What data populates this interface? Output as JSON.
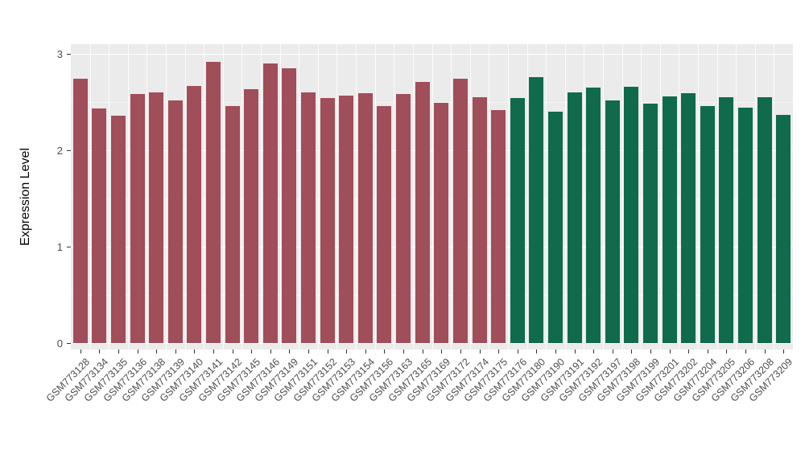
{
  "y_axis": {
    "label": "Expression Level"
  },
  "chart_data": {
    "type": "bar",
    "title": "",
    "xlabel": "",
    "ylabel": "Expression Level",
    "ylim": [
      0,
      3
    ],
    "yticks": [
      0,
      1,
      2,
      3
    ],
    "yticks_minor": [
      0.5,
      1.5,
      2.5
    ],
    "grid": true,
    "legend": "none",
    "panel_background": "#EBEBEB",
    "categories": [
      "GSM773128",
      "GSM773134",
      "GSM773135",
      "GSM773136",
      "GSM773138",
      "GSM773139",
      "GSM773140",
      "GSM773141",
      "GSM773142",
      "GSM773145",
      "GSM773146",
      "GSM773149",
      "GSM773151",
      "GSM773152",
      "GSM773153",
      "GSM773154",
      "GSM773156",
      "GSM773163",
      "GSM773165",
      "GSM773169",
      "GSM773172",
      "GSM773174",
      "GSM773175",
      "GSM773176",
      "GSM773180",
      "GSM773190",
      "GSM773191",
      "GSM773192",
      "GSM773197",
      "GSM773198",
      "GSM773199",
      "GSM773201",
      "GSM773202",
      "GSM773204",
      "GSM773205",
      "GSM773206",
      "GSM773208",
      "GSM773209"
    ],
    "values": [
      2.74,
      2.43,
      2.36,
      2.58,
      2.6,
      2.52,
      2.67,
      2.92,
      2.46,
      2.63,
      2.9,
      2.85,
      2.6,
      2.54,
      2.57,
      2.59,
      2.46,
      2.58,
      2.71,
      2.49,
      2.74,
      2.55,
      2.42,
      2.54,
      2.76,
      2.4,
      2.6,
      2.65,
      2.52,
      2.66,
      2.48,
      2.56,
      2.59,
      2.46,
      2.55,
      2.44,
      2.55,
      2.37
    ],
    "groups": [
      "group1",
      "group1",
      "group1",
      "group1",
      "group1",
      "group1",
      "group1",
      "group1",
      "group1",
      "group1",
      "group1",
      "group1",
      "group1",
      "group1",
      "group1",
      "group1",
      "group1",
      "group1",
      "group1",
      "group1",
      "group1",
      "group1",
      "group1",
      "group2",
      "group2",
      "group2",
      "group2",
      "group2",
      "group2",
      "group2",
      "group2",
      "group2",
      "group2",
      "group2",
      "group2",
      "group2",
      "group2",
      "group2"
    ],
    "group_colors": {
      "group1": "#A04E5A",
      "group2": "#0F6B4B"
    }
  }
}
